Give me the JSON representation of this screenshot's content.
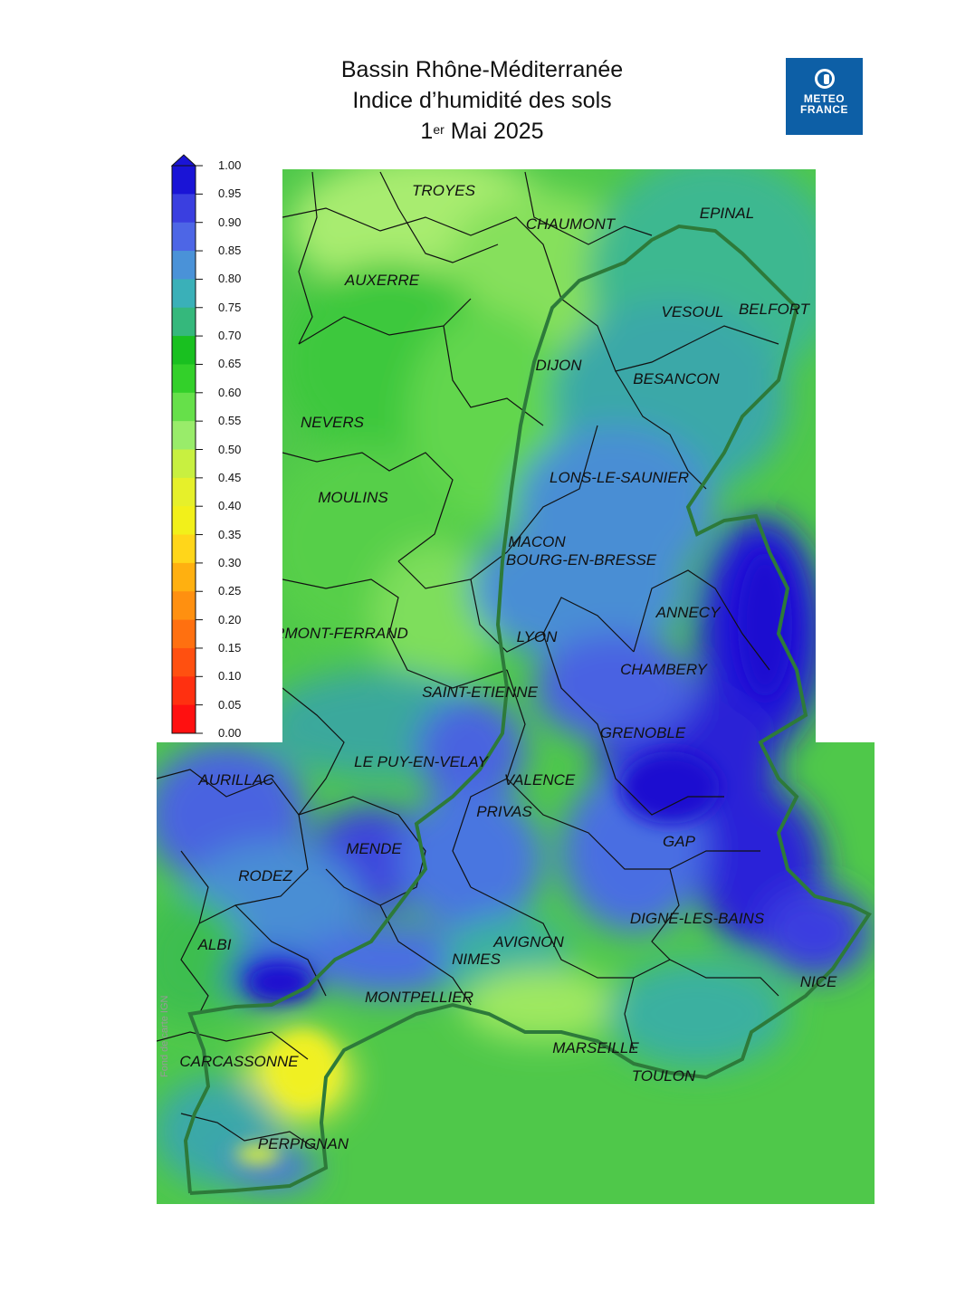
{
  "title": {
    "line1": "Bassin Rhône-Méditerranée",
    "line2": "Indice d’humidité des sols",
    "line3_pre": "1",
    "line3_sup": "er",
    "line3_post": " Mai 2025"
  },
  "logo": {
    "icon": "meteo-france-icon",
    "line1": "METEO",
    "line2": "FRANCE"
  },
  "attribution": "Fond de carte IGN",
  "legend": {
    "labels": [
      "1.00",
      "0.95",
      "0.90",
      "0.85",
      "0.80",
      "0.75",
      "0.70",
      "0.65",
      "0.60",
      "0.55",
      "0.50",
      "0.45",
      "0.40",
      "0.35",
      "0.30",
      "0.25",
      "0.20",
      "0.15",
      "0.10",
      "0.05",
      "0.00"
    ],
    "colors": [
      "#1a14d6",
      "#3a3fe0",
      "#4d66e6",
      "#4a92d8",
      "#3ab0b8",
      "#35b87c",
      "#19c020",
      "#33d02a",
      "#66e04a",
      "#99ec6a",
      "#c8f040",
      "#e6f02a",
      "#f2f01a",
      "#ffd61a",
      "#ffb010",
      "#ff9010",
      "#ff7010",
      "#ff5010",
      "#ff3010",
      "#ff1010"
    ]
  },
  "cities": [
    "TROYES",
    "CHAUMONT",
    "EPINAL",
    "AUXERRE",
    "VESOUL",
    "BELFORT",
    "DIJON",
    "BESANCON",
    "NEVERS",
    "LONS-LE-SAUNIER",
    "MOULINS",
    "MACON",
    "BOURG-EN-BRESSE",
    "ANNECY",
    "CLERMONT-FERRAND",
    "LYON",
    "CHAMBERY",
    "SAINT-ETIENNE",
    "GRENOBLE",
    "LE PUY-EN-VELAY",
    "VALENCE",
    "AURILLAC",
    "PRIVAS",
    "MENDE",
    "GAP",
    "RODEZ",
    "DIGNE-LES-BAINS",
    "AVIGNON",
    "ALBI",
    "NIMES",
    "NICE",
    "MONTPELLIER",
    "MARSEILLE",
    "CARCASSONNE",
    "TOULON",
    "PERPIGNAN"
  ]
}
